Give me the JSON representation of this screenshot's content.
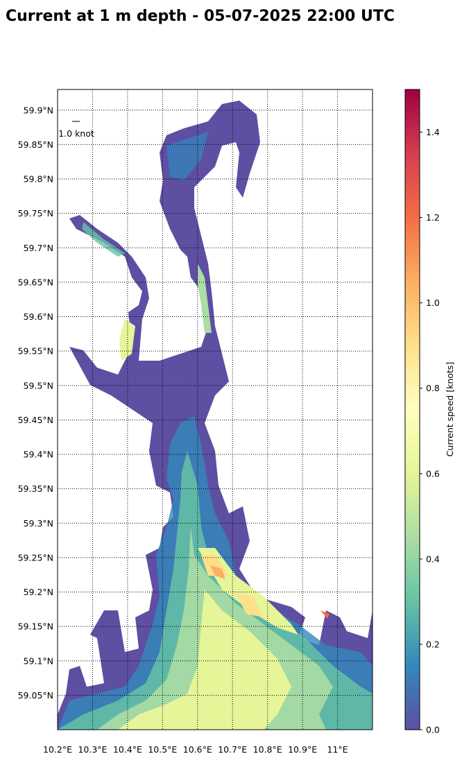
{
  "map": {
    "title": "Current at 1 m depth - 05-07-2025 22:00 UTC",
    "xlim": [
      10.2,
      11.1
    ],
    "ylim": [
      59.0,
      59.93
    ],
    "xticks": [
      {
        "value": 10.2,
        "label": "10.2°E"
      },
      {
        "value": 10.3,
        "label": "10.3°E"
      },
      {
        "value": 10.4,
        "label": "10.4°E"
      },
      {
        "value": 10.5,
        "label": "10.5°E"
      },
      {
        "value": 10.6,
        "label": "10.6°E"
      },
      {
        "value": 10.7,
        "label": "10.7°E"
      },
      {
        "value": 10.8,
        "label": "10.8°E"
      },
      {
        "value": 10.9,
        "label": "10.9°E"
      },
      {
        "value": 11.0,
        "label": "11°E"
      }
    ],
    "yticks": [
      {
        "value": 59.05,
        "label": "59.05°N"
      },
      {
        "value": 59.1,
        "label": "59.1°N"
      },
      {
        "value": 59.15,
        "label": "59.15°N"
      },
      {
        "value": 59.2,
        "label": "59.2°N"
      },
      {
        "value": 59.25,
        "label": "59.25°N"
      },
      {
        "value": 59.3,
        "label": "59.3°N"
      },
      {
        "value": 59.35,
        "label": "59.35°N"
      },
      {
        "value": 59.4,
        "label": "59.4°N"
      },
      {
        "value": 59.45,
        "label": "59.45°N"
      },
      {
        "value": 59.5,
        "label": "59.5°N"
      },
      {
        "value": 59.55,
        "label": "59.55°N"
      },
      {
        "value": 59.6,
        "label": "59.6°N"
      },
      {
        "value": 59.65,
        "label": "59.65°N"
      },
      {
        "value": 59.7,
        "label": "59.7°N"
      },
      {
        "value": 59.75,
        "label": "59.75°N"
      },
      {
        "value": 59.8,
        "label": "59.8°N"
      },
      {
        "value": 59.85,
        "label": "59.85°N"
      },
      {
        "value": 59.9,
        "label": "59.9°N"
      }
    ],
    "grid": true,
    "quiver_key": "1.0 knot",
    "colorbar": {
      "label": "Current speed [knots]",
      "lim": [
        0,
        1.5
      ],
      "ticks": [
        {
          "value": 0,
          "label": "0.0"
        },
        0.2,
        0.4,
        0.6,
        0.8,
        {
          "value": 1.0,
          "label": "1.0"
        },
        1.2,
        1.4
      ],
      "colors": [
        "#5e4fa2",
        "#3288bd",
        "#66c2a5",
        "#abdda4",
        "#e6f598",
        "#ffffbf",
        "#fee08b",
        "#fdae61",
        "#f46d43",
        "#d53e4f",
        "#9e0142"
      ]
    }
  }
}
